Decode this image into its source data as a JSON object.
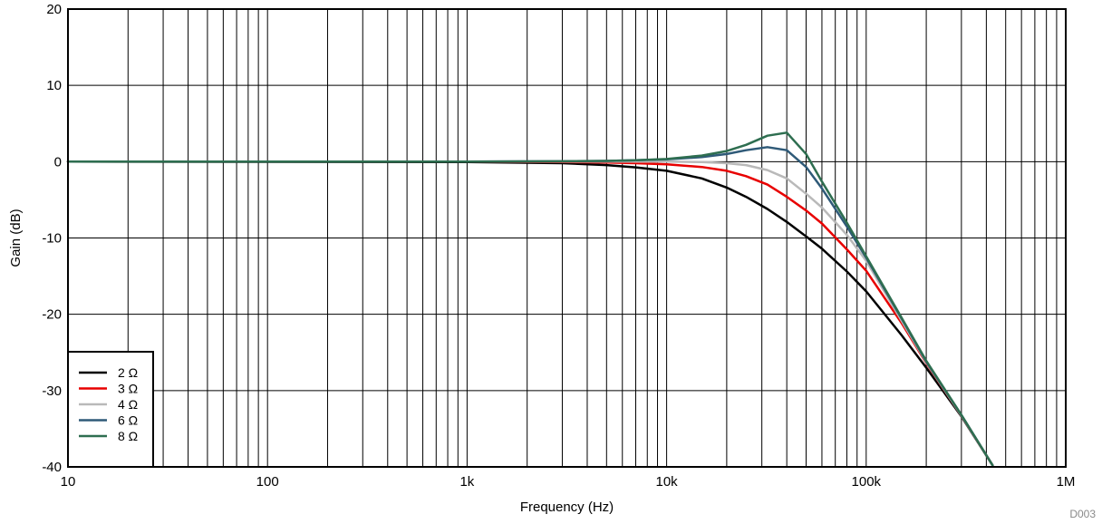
{
  "chart_data": {
    "type": "line",
    "xlabel": "Frequency (Hz)",
    "ylabel": "Gain (dB)",
    "xscale": "log",
    "xlim": [
      10,
      1000000
    ],
    "ylim": [
      -40,
      20
    ],
    "grid": true,
    "legend_position": "bottom-left",
    "x_ticks": [
      {
        "value": 10,
        "label": "10"
      },
      {
        "value": 100,
        "label": "100"
      },
      {
        "value": 1000,
        "label": "1k"
      },
      {
        "value": 10000,
        "label": "10k"
      },
      {
        "value": 100000,
        "label": "100k"
      },
      {
        "value": 1000000,
        "label": "1M"
      }
    ],
    "y_ticks": [
      {
        "value": 20,
        "label": "20"
      },
      {
        "value": 10,
        "label": "10"
      },
      {
        "value": 0,
        "label": "0"
      },
      {
        "value": -10,
        "label": "-10"
      },
      {
        "value": -20,
        "label": "-20"
      },
      {
        "value": -30,
        "label": "-30"
      },
      {
        "value": -40,
        "label": "-40"
      }
    ],
    "x": [
      10,
      1000,
      3000,
      5000,
      7000,
      10000,
      15000,
      20000,
      25000,
      32000,
      40000,
      50000,
      60000,
      80000,
      100000,
      150000,
      200000,
      300000,
      430000
    ],
    "series": [
      {
        "name": "2 Ω",
        "color": "#000000",
        "values": [
          0,
          -0.05,
          -0.2,
          -0.45,
          -0.75,
          -1.2,
          -2.2,
          -3.4,
          -4.6,
          -6.2,
          -7.9,
          -9.8,
          -11.4,
          -14.4,
          -17.0,
          -22.7,
          -27.0,
          -33.4,
          -39.8
        ]
      },
      {
        "name": "3 Ω",
        "color": "#e80000",
        "values": [
          0,
          0,
          -0.05,
          -0.1,
          -0.2,
          -0.35,
          -0.7,
          -1.2,
          -1.9,
          -3.0,
          -4.6,
          -6.4,
          -8.1,
          -11.5,
          -14.3,
          -21.1,
          -26.4,
          -33.3,
          -39.8
        ]
      },
      {
        "name": "4 Ω",
        "color": "#b9b9b9",
        "values": [
          0,
          0,
          0,
          0,
          0,
          0,
          -0.05,
          -0.2,
          -0.45,
          -1.1,
          -2.2,
          -4.2,
          -6.0,
          -9.6,
          -13.0,
          -20.8,
          -26.3,
          -33.3,
          -39.8
        ]
      },
      {
        "name": "6 Ω",
        "color": "#2f5a78",
        "values": [
          0,
          0,
          0.05,
          0.1,
          0.2,
          0.3,
          0.6,
          1.0,
          1.5,
          1.9,
          1.5,
          -0.7,
          -3.5,
          -8.5,
          -12.6,
          -20.5,
          -26.2,
          -33.2,
          -39.8
        ]
      },
      {
        "name": "8 Ω",
        "color": "#2e6e50",
        "values": [
          0,
          0,
          0.05,
          0.1,
          0.2,
          0.35,
          0.8,
          1.4,
          2.2,
          3.4,
          3.8,
          1.0,
          -2.6,
          -8.0,
          -12.4,
          -20.4,
          -26.1,
          -33.2,
          -39.8
        ]
      }
    ],
    "annotation": "D003"
  }
}
